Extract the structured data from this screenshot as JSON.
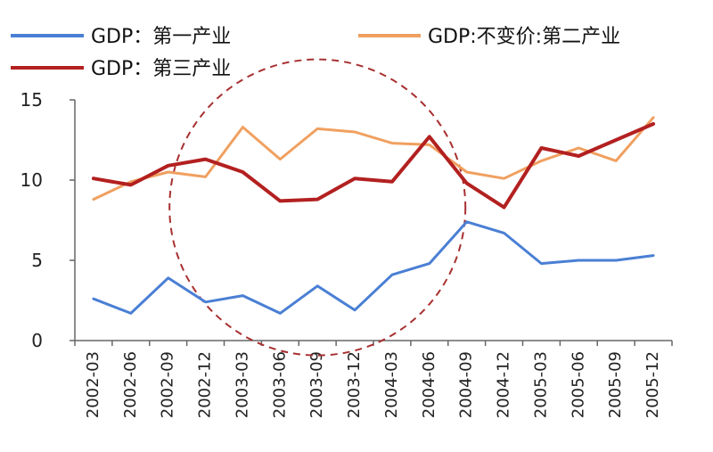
{
  "chart_data": {
    "type": "line",
    "categories": [
      "2002-03",
      "2002-06",
      "2002-09",
      "2002-12",
      "2003-03",
      "2003-06",
      "2003-09",
      "2003-12",
      "2004-03",
      "2004-06",
      "2004-09",
      "2004-12",
      "2005-03",
      "2005-06",
      "2005-09",
      "2005-12"
    ],
    "ylim": [
      0,
      15
    ],
    "yticks": [
      0,
      5,
      10,
      15
    ],
    "grid": false,
    "legend_position": "top",
    "series": [
      {
        "name": "GDP：第一产业",
        "color": "#4a7fd4",
        "values": [
          2.6,
          1.7,
          3.9,
          2.4,
          2.8,
          1.7,
          3.4,
          1.9,
          4.1,
          4.8,
          7.4,
          6.7,
          4.8,
          5.0,
          5.0,
          5.3
        ]
      },
      {
        "name": "GDP:不变价:第二产业",
        "color": "#f0a060",
        "values": [
          8.8,
          9.9,
          10.5,
          10.2,
          13.3,
          11.3,
          13.2,
          13.0,
          12.3,
          12.2,
          10.5,
          10.1,
          11.2,
          12.0,
          11.2,
          13.9
        ]
      },
      {
        "name": "GDP：第三产业",
        "color": "#b32020",
        "values": [
          10.1,
          9.7,
          10.9,
          11.3,
          10.5,
          8.7,
          8.8,
          10.1,
          9.9,
          12.7,
          9.8,
          8.3,
          12.0,
          11.5,
          12.5,
          13.5
        ]
      }
    ],
    "annotation": {
      "shape": "dashed-circle",
      "color": "#a83030",
      "center_x": "2003-09",
      "center_y": 8.3
    }
  }
}
